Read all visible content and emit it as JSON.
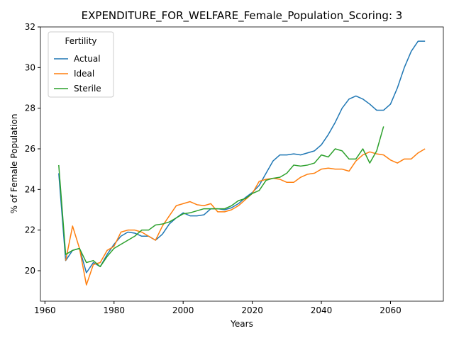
{
  "chart_data": {
    "type": "line",
    "title": "EXPENDITURE_FOR_WELFARE_Female_Population_Scoring: 3",
    "x_label": "Years",
    "y_label": "% of Female Population",
    "legend_title": "Fertility",
    "legend": "upper left",
    "grid": false,
    "x": [
      1964,
      1966,
      1968,
      1970,
      1972,
      1974,
      1976,
      1978,
      1980,
      1982,
      1984,
      1986,
      1988,
      1990,
      1992,
      1994,
      1996,
      1998,
      2000,
      2002,
      2004,
      2006,
      2008,
      2010,
      2012,
      2014,
      2016,
      2018,
      2020,
      2022,
      2024,
      2026,
      2028,
      2030,
      2032,
      2034,
      2036,
      2038,
      2040,
      2042,
      2044,
      2046,
      2048,
      2050,
      2052,
      2054,
      2056,
      2058,
      2060,
      2062,
      2064,
      2066,
      2068,
      2070
    ],
    "series": [
      {
        "name": "Actual",
        "color": "#1f77b4",
        "values": [
          24.8,
          20.5,
          21.0,
          21.1,
          19.9,
          20.4,
          20.2,
          20.8,
          21.3,
          21.7,
          21.9,
          21.85,
          21.7,
          21.7,
          21.5,
          21.8,
          22.3,
          22.6,
          22.85,
          22.7,
          22.7,
          22.75,
          23.05,
          23.05,
          23.0,
          23.1,
          23.3,
          23.6,
          23.85,
          24.2,
          24.8,
          25.4,
          25.7,
          25.7,
          25.75,
          25.7,
          25.8,
          25.9,
          26.2,
          26.7,
          27.3,
          28.0,
          28.45,
          28.6,
          28.45,
          28.2,
          27.9,
          27.9,
          28.2,
          29.0,
          30.0,
          30.8,
          31.3,
          31.3
        ]
      },
      {
        "name": "Ideal",
        "color": "#ff7f0e",
        "values": [
          null,
          20.5,
          22.2,
          21.1,
          19.3,
          20.3,
          20.4,
          21.0,
          21.2,
          21.9,
          22.0,
          22.0,
          21.9,
          21.7,
          21.5,
          22.2,
          22.7,
          23.2,
          23.3,
          23.4,
          23.25,
          23.2,
          23.3,
          22.9,
          22.9,
          23.0,
          23.2,
          23.5,
          23.8,
          24.4,
          24.5,
          24.55,
          24.5,
          24.35,
          24.35,
          24.6,
          24.75,
          24.8,
          25.0,
          25.05,
          25.0,
          25.0,
          24.9,
          25.4,
          25.7,
          25.85,
          25.75,
          25.7,
          25.45,
          25.3,
          25.5,
          25.5,
          25.8,
          26.0
        ]
      },
      {
        "name": "Sterile",
        "color": "#2ca02c",
        "values": [
          25.2,
          20.8,
          21.0,
          21.1,
          20.4,
          20.5,
          20.2,
          20.7,
          21.1,
          21.3,
          21.5,
          21.7,
          22.0,
          22.0,
          22.25,
          22.3,
          22.4,
          22.6,
          22.8,
          22.85,
          22.95,
          23.05,
          23.05,
          23.05,
          23.05,
          23.2,
          23.45,
          23.55,
          23.8,
          23.95,
          24.45,
          24.55,
          24.6,
          24.8,
          25.2,
          25.15,
          25.2,
          25.3,
          25.7,
          25.6,
          26.0,
          25.9,
          25.5,
          25.5,
          26.0,
          25.3,
          25.9,
          27.1,
          null,
          null,
          null,
          null,
          null,
          null
        ]
      }
    ],
    "xlim": [
      1958.7,
      2075.3
    ],
    "xticks": [
      1960,
      1980,
      2000,
      2020,
      2040,
      2060
    ],
    "ylim": [
      18.5,
      32.0
    ],
    "yticks": [
      20,
      22,
      24,
      26,
      28,
      30,
      32
    ]
  }
}
